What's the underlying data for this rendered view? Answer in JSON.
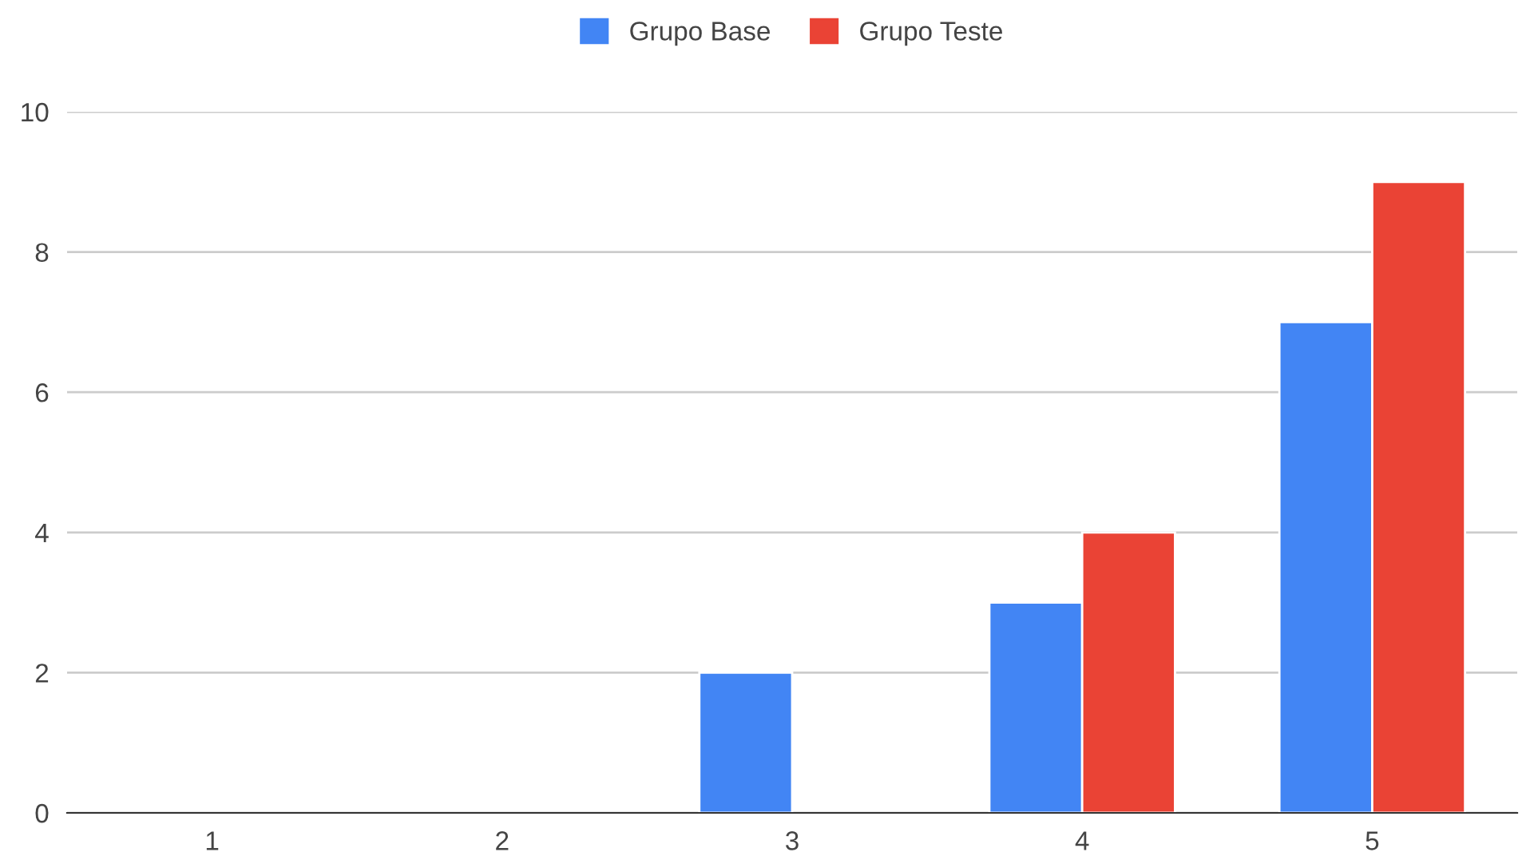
{
  "chart_data": {
    "type": "bar",
    "categories": [
      "1",
      "2",
      "3",
      "4",
      "5"
    ],
    "series": [
      {
        "name": "Grupo Base",
        "color": "#4285f4",
        "values": [
          0,
          0,
          2,
          3,
          7
        ]
      },
      {
        "name": "Grupo Teste",
        "color": "#ea4335",
        "values": [
          0,
          0,
          0,
          4,
          9
        ]
      }
    ],
    "ylim": [
      0,
      10
    ],
    "yticks": [
      0,
      2,
      4,
      6,
      8,
      10
    ],
    "grid": "y",
    "legend": "top"
  }
}
